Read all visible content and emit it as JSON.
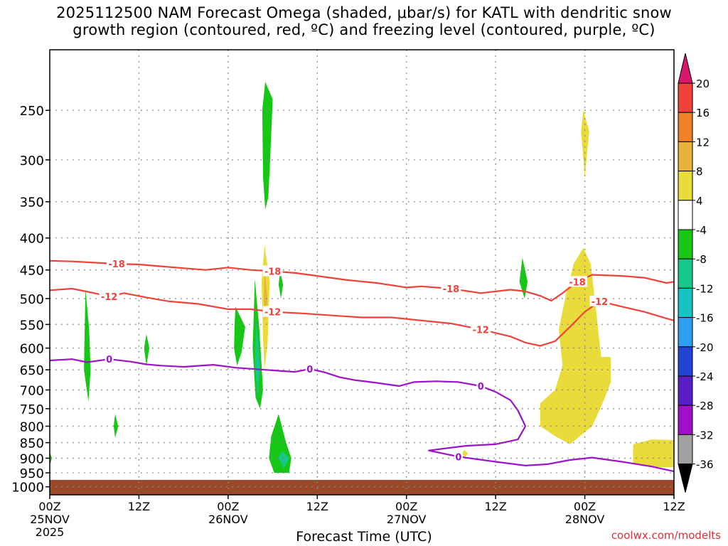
{
  "title": {
    "line1": "2025112500 NAM Forecast Omega (shaded, μbar/s) for KATL with dendritic snow",
    "line2": "growth region (contoured, red, ºC) and freezing level (contoured, purple, ºC)"
  },
  "credit": "coolwx.com/modelts",
  "chart_data": {
    "type": "heatmap",
    "xlabel": "Forecast Time (UTC)",
    "x_unit": "hours",
    "xlim": [
      0,
      84
    ],
    "x_ticks": [
      {
        "hour": 0,
        "label": "00Z",
        "date": "25NOV",
        "year": "2025"
      },
      {
        "hour": 12,
        "label": "12Z",
        "date": "",
        "year": ""
      },
      {
        "hour": 24,
        "label": "00Z",
        "date": "26NOV",
        "year": ""
      },
      {
        "hour": 36,
        "label": "12Z",
        "date": "",
        "year": ""
      },
      {
        "hour": 48,
        "label": "00Z",
        "date": "27NOV",
        "year": ""
      },
      {
        "hour": 60,
        "label": "12Z",
        "date": "",
        "year": ""
      },
      {
        "hour": 72,
        "label": "00Z",
        "date": "28NOV",
        "year": ""
      },
      {
        "hour": 84,
        "label": "12Z",
        "date": "",
        "year": ""
      }
    ],
    "ylabel": "",
    "y_scale": "log-pressure (hPa)",
    "ylim": [
      1030,
      200
    ],
    "y_ticks": [
      250,
      300,
      350,
      400,
      450,
      500,
      550,
      600,
      650,
      700,
      750,
      800,
      850,
      900,
      950,
      1000
    ],
    "grid": true,
    "colorbar": {
      "unit": "μbar/s",
      "labels": [
        "20",
        "16",
        "12",
        "8",
        "4",
        "-4",
        "-8",
        "-12",
        "-16",
        "-20",
        "-24",
        "-28",
        "-32",
        "-36"
      ],
      "colors": [
        "#d8166b",
        "#f0413a",
        "#ef8227",
        "#e8b33d",
        "#e9dc3a",
        "#ffffff",
        "#16c716",
        "#16c78a",
        "#18c2c2",
        "#2d9ff0",
        "#2244d4",
        "#5a1ec4",
        "#a010c8",
        "#a0a0a0",
        "#000000"
      ]
    },
    "ground": {
      "color": "#9a4a28",
      "top_hpa": 975
    },
    "contours": [
      {
        "name": "-18",
        "color": "#f0413a",
        "points": [
          [
            0,
            435
          ],
          [
            3,
            436
          ],
          [
            6,
            438
          ],
          [
            9,
            440
          ],
          [
            12,
            441
          ],
          [
            15,
            444
          ],
          [
            18,
            447
          ],
          [
            21,
            450
          ],
          [
            24,
            446
          ],
          [
            27,
            450
          ],
          [
            30,
            452
          ],
          [
            33,
            455
          ],
          [
            36,
            460
          ],
          [
            40,
            467
          ],
          [
            44,
            472
          ],
          [
            48,
            480
          ],
          [
            50,
            478
          ],
          [
            54,
            482
          ],
          [
            58,
            490
          ],
          [
            62,
            484
          ],
          [
            64,
            487
          ],
          [
            66,
            495
          ],
          [
            67.5,
            504
          ],
          [
            69,
            490
          ],
          [
            71,
            470
          ],
          [
            73,
            458
          ],
          [
            77,
            460
          ],
          [
            80,
            463
          ],
          [
            83,
            472
          ],
          [
            84,
            470
          ]
        ]
      },
      {
        "name": "-12",
        "color": "#f0413a",
        "points": [
          [
            0,
            485
          ],
          [
            3,
            482
          ],
          [
            6,
            490
          ],
          [
            8,
            496
          ],
          [
            10,
            490
          ],
          [
            13,
            498
          ],
          [
            16,
            505
          ],
          [
            20,
            510
          ],
          [
            24,
            520
          ],
          [
            27,
            520
          ],
          [
            30,
            525
          ],
          [
            34,
            528
          ],
          [
            38,
            532
          ],
          [
            42,
            536
          ],
          [
            46,
            536
          ],
          [
            50,
            542
          ],
          [
            54,
            548
          ],
          [
            58,
            560
          ],
          [
            62,
            575
          ],
          [
            64,
            588
          ],
          [
            66,
            595
          ],
          [
            68,
            585
          ],
          [
            70,
            555
          ],
          [
            72,
            525
          ],
          [
            74,
            505
          ],
          [
            77,
            515
          ],
          [
            80,
            525
          ],
          [
            83,
            538
          ],
          [
            84,
            542
          ]
        ]
      },
      {
        "name": "0",
        "color": "#9a14c8",
        "points": [
          [
            0,
            628
          ],
          [
            3,
            625
          ],
          [
            5,
            632
          ],
          [
            8,
            625
          ],
          [
            11,
            631
          ],
          [
            13,
            637
          ],
          [
            15,
            640
          ],
          [
            18,
            643
          ],
          [
            22,
            638
          ],
          [
            25,
            645
          ],
          [
            29,
            650
          ],
          [
            33,
            655
          ],
          [
            35,
            648
          ],
          [
            37,
            656
          ],
          [
            39,
            668
          ],
          [
            41,
            675
          ],
          [
            44,
            682
          ],
          [
            47,
            690
          ],
          [
            49,
            680
          ],
          [
            52,
            678
          ],
          [
            55,
            680
          ],
          [
            58,
            690
          ],
          [
            60,
            705
          ],
          [
            62,
            727
          ],
          [
            63,
            755
          ],
          [
            64,
            800
          ],
          [
            63,
            840
          ],
          [
            60,
            855
          ],
          [
            56,
            860
          ],
          [
            51,
            875
          ],
          [
            55,
            895
          ],
          [
            60,
            912
          ],
          [
            64,
            925
          ],
          [
            67,
            920
          ],
          [
            70,
            906
          ],
          [
            73,
            898
          ],
          [
            77,
            912
          ],
          [
            81,
            928
          ],
          [
            84,
            945
          ]
        ]
      }
    ],
    "regions": [
      {
        "value": -6,
        "bounds": [
          [
            29,
            225
          ],
          [
            30,
            240
          ],
          [
            29.6,
            310
          ],
          [
            29.4,
            345
          ],
          [
            29,
            360
          ],
          [
            28.7,
            320
          ],
          [
            28.6,
            250
          ]
        ]
      },
      {
        "value": -6,
        "bounds": [
          [
            4.8,
            482
          ],
          [
            5.3,
            560
          ],
          [
            5.5,
            650
          ],
          [
            5.2,
            730
          ],
          [
            4.6,
            650
          ],
          [
            4.7,
            560
          ]
        ]
      },
      {
        "value": -6,
        "bounds": [
          [
            13,
            570
          ],
          [
            13.4,
            600
          ],
          [
            13,
            640
          ],
          [
            12.7,
            600
          ]
        ]
      },
      {
        "value": -6,
        "bounds": [
          [
            8.8,
            765
          ],
          [
            9.2,
            800
          ],
          [
            8.8,
            835
          ],
          [
            8.6,
            800
          ]
        ]
      },
      {
        "value": -6,
        "bounds": [
          [
            0,
            880
          ],
          [
            0.3,
            900
          ],
          [
            0,
            925
          ]
        ]
      },
      {
        "value": -6,
        "bounds": [
          [
            25,
            515
          ],
          [
            26.3,
            555
          ],
          [
            25.8,
            610
          ],
          [
            25.2,
            640
          ],
          [
            24.8,
            600
          ],
          [
            24.9,
            540
          ]
        ]
      },
      {
        "value": -6,
        "bounds": [
          [
            27.6,
            465
          ],
          [
            28.2,
            560
          ],
          [
            28.7,
            700
          ],
          [
            28.3,
            750
          ],
          [
            27.7,
            720
          ],
          [
            27.3,
            600
          ]
        ]
      },
      {
        "value": -6,
        "bounds": [
          [
            31,
            452
          ],
          [
            31.4,
            475
          ],
          [
            31.1,
            500
          ],
          [
            30.8,
            475
          ]
        ]
      },
      {
        "value": -6,
        "bounds": [
          [
            30.8,
            765
          ],
          [
            31.8,
            850
          ],
          [
            32.5,
            900
          ],
          [
            32.2,
            950
          ],
          [
            30.2,
            950
          ],
          [
            29.5,
            900
          ],
          [
            29.8,
            830
          ]
        ]
      },
      {
        "value": -6,
        "bounds": [
          [
            63.6,
            430
          ],
          [
            64.3,
            470
          ],
          [
            63.9,
            500
          ],
          [
            63.2,
            470
          ]
        ]
      },
      {
        "value": -10,
        "bounds": [
          [
            27.8,
            540
          ],
          [
            28.3,
            640
          ],
          [
            28,
            720
          ],
          [
            27.6,
            640
          ]
        ]
      },
      {
        "value": -10,
        "bounds": [
          [
            31.3,
            875
          ],
          [
            32.2,
            900
          ],
          [
            31.5,
            935
          ],
          [
            30.8,
            900
          ]
        ]
      },
      {
        "value": 6,
        "bounds": [
          [
            28.9,
            410
          ],
          [
            29.6,
            470
          ],
          [
            29.3,
            590
          ],
          [
            28.9,
            650
          ],
          [
            28.7,
            580
          ],
          [
            28.5,
            470
          ]
        ]
      },
      {
        "value": 6,
        "bounds": [
          [
            71.8,
            250
          ],
          [
            72.6,
            270
          ],
          [
            72,
            320
          ],
          [
            71.5,
            270
          ]
        ]
      },
      {
        "value": 6,
        "bounds": [
          [
            71.8,
            415
          ],
          [
            72.8,
            440
          ],
          [
            73.5,
            520
          ],
          [
            74.2,
            620
          ],
          [
            75.5,
            620
          ],
          [
            75.5,
            680
          ],
          [
            74.5,
            730
          ],
          [
            73,
            800
          ],
          [
            70,
            855
          ],
          [
            68,
            830
          ],
          [
            66,
            800
          ],
          [
            66,
            735
          ],
          [
            68,
            700
          ],
          [
            69,
            640
          ],
          [
            68.5,
            560
          ],
          [
            69.5,
            490
          ],
          [
            70.5,
            440
          ]
        ]
      },
      {
        "value": 10,
        "bounds": [
          [
            28.9,
            450
          ],
          [
            29.3,
            500
          ],
          [
            29,
            545
          ],
          [
            28.8,
            500
          ]
        ]
      },
      {
        "value": 6,
        "bounds": [
          [
            55.8,
            872
          ],
          [
            56.3,
            885
          ],
          [
            55.8,
            897
          ],
          [
            55.5,
            885
          ]
        ]
      },
      {
        "value": 6,
        "bounds": [
          [
            78.5,
            855
          ],
          [
            81,
            840
          ],
          [
            84,
            842
          ],
          [
            84,
            930
          ],
          [
            81,
            930
          ],
          [
            78.5,
            915
          ]
        ]
      }
    ]
  }
}
